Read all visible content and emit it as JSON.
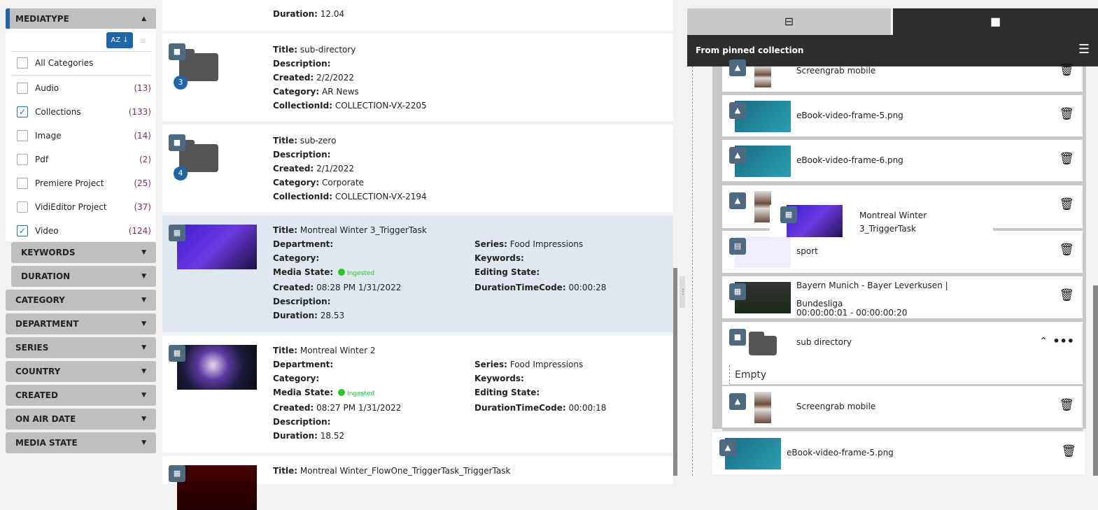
{
  "filters": {
    "mediatype": {
      "label": "MEDIATYPE",
      "sort_label": "AZ ↓",
      "options": [
        {
          "label": "All Categories",
          "count": "",
          "checked": false
        },
        {
          "label": "Audio",
          "count": "(13)",
          "checked": false
        },
        {
          "label": "Collections",
          "count": "(133)",
          "checked": true
        },
        {
          "label": "Image",
          "count": "(14)",
          "checked": false
        },
        {
          "label": "Pdf",
          "count": "(2)",
          "checked": false
        },
        {
          "label": "Premiere Project",
          "count": "(25)",
          "checked": false
        },
        {
          "label": "VidiEditor Project",
          "count": "(37)",
          "checked": false
        },
        {
          "label": "Video",
          "count": "(124)",
          "checked": true
        }
      ]
    },
    "sub": [
      "KEYWORDS",
      "DURATION"
    ],
    "groups": [
      "CATEGORY",
      "DEPARTMENT",
      "SERIES",
      "COUNTRY",
      "CREATED",
      "ON AIR DATE",
      "MEDIA STATE"
    ]
  },
  "results": [
    {
      "kind": "partial",
      "left": [
        [
          "Duration:",
          "12.04"
        ]
      ]
    },
    {
      "kind": "folder",
      "num": "3",
      "left": [
        [
          "Title:",
          "sub-directory"
        ],
        [
          "Description:",
          ""
        ],
        [
          "Created:",
          "2/2/2022"
        ],
        [
          "Category:",
          "AR News"
        ],
        [
          "CollectionId:",
          "COLLECTION-VX-2205"
        ]
      ]
    },
    {
      "kind": "folder",
      "num": "4",
      "left": [
        [
          "Title:",
          "sub-zero"
        ],
        [
          "Description:",
          ""
        ],
        [
          "Created:",
          "2/1/2022"
        ],
        [
          "Category:",
          "Corporate"
        ],
        [
          "CollectionId:",
          "COLLECTION-VX-2194"
        ]
      ]
    },
    {
      "kind": "video",
      "selected": true,
      "media_state": "Ingested",
      "left": [
        [
          "Title:",
          "Montreal Winter 3_TriggerTask"
        ],
        [
          "Department:",
          ""
        ],
        [
          "Category:",
          ""
        ],
        [
          "Media State:",
          ""
        ],
        [
          "Created:",
          "08:28 PM 1/31/2022"
        ],
        [
          "Description:",
          ""
        ],
        [
          "Duration:",
          "28.53"
        ]
      ],
      "right": [
        [
          "Series:",
          "Food Impressions"
        ],
        [
          "Keywords:",
          ""
        ],
        [
          "Editing State:",
          ""
        ],
        [
          "DurationTimeCode:",
          "00:00:28"
        ]
      ]
    },
    {
      "kind": "video",
      "media_state": "Ingested",
      "left": [
        [
          "Title:",
          "Montreal Winter 2"
        ],
        [
          "Department:",
          ""
        ],
        [
          "Category:",
          ""
        ],
        [
          "Media State:",
          ""
        ],
        [
          "Created:",
          "08:27 PM 1/31/2022"
        ],
        [
          "Description:",
          ""
        ],
        [
          "Duration:",
          "18.52"
        ]
      ],
      "right": [
        [
          "Series:",
          "Food Impressions"
        ],
        [
          "Keywords:",
          ""
        ],
        [
          "Editing State:",
          ""
        ],
        [
          "DurationTimeCode:",
          "00:00:18"
        ]
      ]
    },
    {
      "kind": "video",
      "left": [
        [
          "Title:",
          "Montreal Winter_FlowOne_TriggerTask_TriggerTask"
        ]
      ]
    }
  ],
  "right_panel": {
    "header": "From pinned collection",
    "items": [
      {
        "type": "image",
        "name": "Screengrab mobile"
      },
      {
        "type": "image",
        "name": "eBook-video-frame-5.png"
      },
      {
        "type": "image",
        "name": "eBook-video-frame-6.png"
      },
      {
        "type": "image",
        "name": ""
      },
      {
        "type": "document",
        "name": "sport"
      },
      {
        "type": "video",
        "name": "Bayern Munich - Bayer Leverkusen | Bundesliga",
        "range": "00:00:00:01 - 00:00:00:20"
      },
      {
        "type": "folder",
        "name": "sub directory",
        "empty": "Empty"
      },
      {
        "type": "image",
        "name": "Screengrab mobile"
      },
      {
        "type": "image",
        "name": "eBook-video-frame-5.png"
      }
    ],
    "drag_ghost": {
      "name": "Montreal Winter 3_TriggerTask"
    }
  },
  "colors": {
    "accent": "#1e66a8",
    "selected_row": "#dfe8ee",
    "ingested": "#2ac52a",
    "dark_header": "#2d2d2d"
  }
}
